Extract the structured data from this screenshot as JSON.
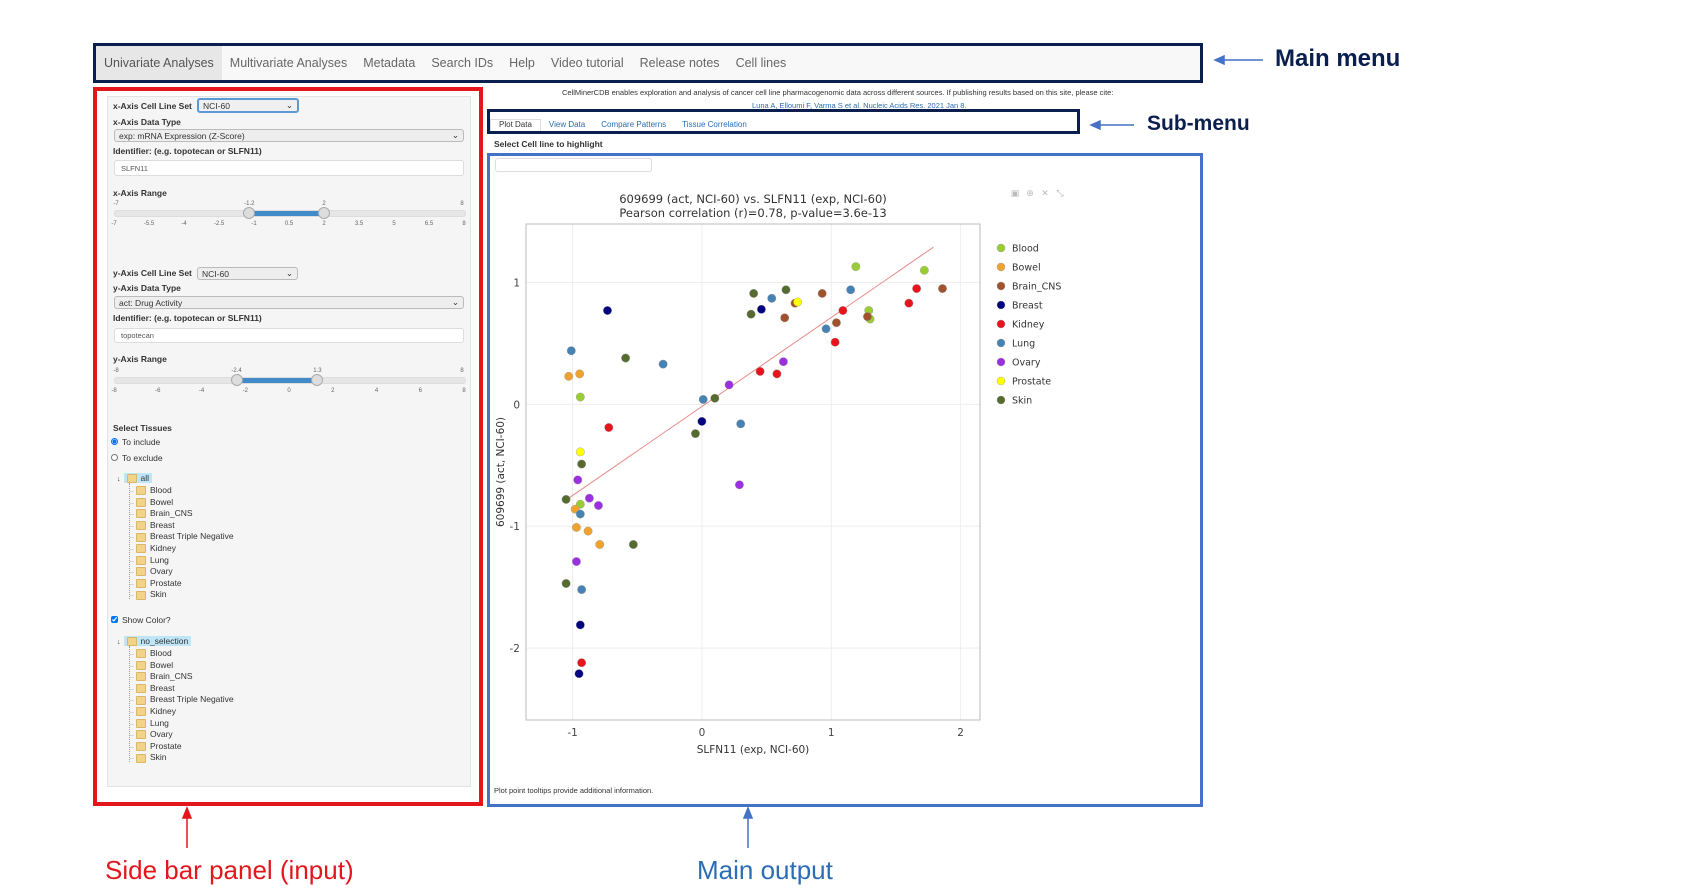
{
  "main_menu": {
    "items": [
      "Univariate Analyses",
      "Multivariate Analyses",
      "Metadata",
      "Search IDs",
      "Help",
      "Video tutorial",
      "Release notes",
      "Cell lines"
    ],
    "active": "Univariate Analyses"
  },
  "callouts": {
    "main_menu": "Main menu",
    "sub_menu": "Sub-menu",
    "sidebar": "Side bar panel (input)",
    "main_output": "Main output"
  },
  "header": {
    "citation_text": "CellMinerCDB enables exploration and analysis of cancer cell line pharmacogenomic data across different sources. If publishing results based on this site, please cite:",
    "citation_link": "Luna A, Elloumi F, Varma S et al. Nucleic Acids Res. 2021 Jan 8."
  },
  "sidebar": {
    "x_axis": {
      "cell_line_set_label": "x-Axis Cell Line Set",
      "cell_line_set": "NCI-60",
      "data_type_label": "x-Axis Data Type",
      "data_type": "exp: mRNA Expression (Z-Score)",
      "identifier_label": "Identifier: (e.g. topotecan or SLFN11)",
      "identifier": "SLFN11",
      "range_label": "x-Axis Range",
      "range_min": -7,
      "range_max": 8,
      "range_low": -1.2,
      "range_high": 2,
      "ticks": [
        "-7",
        "-5.5",
        "-4",
        "-2.5",
        "-1",
        "0.5",
        "2",
        "3.5",
        "5",
        "6.5",
        "8"
      ]
    },
    "y_axis": {
      "cell_line_set_label": "y-Axis Cell Line Set",
      "cell_line_set": "NCI-60",
      "data_type_label": "y-Axis Data Type",
      "data_type": "act: Drug Activity",
      "identifier_label": "Identifier: (e.g. topotecan or SLFN11)",
      "identifier": "topotecan",
      "range_label": "y-Axis Range",
      "range_min": -8,
      "range_max": 8,
      "range_low": -2.4,
      "range_high": 1.3,
      "ticks": [
        "-8",
        "-6",
        "-4",
        "-2",
        "0",
        "2",
        "4",
        "6",
        "8"
      ]
    },
    "select_tissues_label": "Select Tissues",
    "include_label": "To include",
    "exclude_label": "To exclude",
    "mode": "include",
    "tissue_tree_root": "all",
    "tissues": [
      "Blood",
      "Bowel",
      "Brain_CNS",
      "Breast",
      "Breast Triple Negative",
      "Kidney",
      "Lung",
      "Ovary",
      "Prostate",
      "Skin"
    ],
    "show_color_label": "Show Color?",
    "show_color": true,
    "color_tree_root": "no_selection"
  },
  "sub_menu": {
    "tabs": [
      "Plot Data",
      "View Data",
      "Compare Patterns",
      "Tissue Correlation"
    ],
    "active": "Plot Data"
  },
  "main": {
    "highlight_label": "Select Cell line to highlight",
    "highlight_value": "",
    "footnote": "Plot point tooltips provide additional information.",
    "modebar_icons": [
      "camera-icon",
      "zoom-icon",
      "reset-axes-icon",
      "autoscale-icon"
    ]
  },
  "chart_data": {
    "type": "scatter",
    "title": "609699 (act, NCI-60) vs. SLFN11 (exp, NCI-60)",
    "subtitle": "Pearson correlation (r)=0.78, p-value=3.6e-13",
    "xlabel": "SLFN11 (exp, NCI-60)",
    "ylabel": "609699 (act, NCI-60)",
    "xlim": [
      -1.36,
      2.15
    ],
    "ylim": [
      -2.59,
      1.48
    ],
    "xticks": [
      -1,
      0,
      1,
      2
    ],
    "yticks": [
      -2,
      -1,
      0,
      1
    ],
    "grid": true,
    "legend": "right",
    "fit_line": {
      "color": "#e88a8a",
      "from": [
        -1.03,
        -0.77
      ],
      "to": [
        1.79,
        1.29
      ]
    },
    "series": [
      {
        "name": "Blood",
        "color": "#9acd32",
        "points": [
          [
            1.19,
            1.13
          ],
          [
            1.72,
            1.1
          ],
          [
            1.29,
            0.77
          ],
          [
            1.3,
            0.7
          ],
          [
            -0.94,
            0.06
          ],
          [
            -0.94,
            -0.82
          ]
        ]
      },
      {
        "name": "Bowel",
        "color": "#f0a22e",
        "points": [
          [
            -1.03,
            0.23
          ],
          [
            -0.945,
            0.25
          ],
          [
            -0.98,
            -0.86
          ],
          [
            -0.97,
            -1.01
          ],
          [
            -0.88,
            -1.04
          ],
          [
            -0.79,
            -1.15
          ]
        ]
      },
      {
        "name": "Brain_CNS",
        "color": "#a0522d",
        "points": [
          [
            0.72,
            0.83
          ],
          [
            0.64,
            0.71
          ],
          [
            0.93,
            0.91
          ],
          [
            1.04,
            0.67
          ],
          [
            1.28,
            0.72
          ],
          [
            1.86,
            0.95
          ]
        ]
      },
      {
        "name": "Breast",
        "color": "#000080",
        "points": [
          [
            -0.73,
            0.77
          ],
          [
            0.46,
            0.78
          ],
          [
            0.0,
            -0.14
          ],
          [
            -0.94,
            -1.81
          ],
          [
            -0.95,
            -2.21
          ]
        ]
      },
      {
        "name": "Kidney",
        "color": "#e8141b",
        "points": [
          [
            -0.72,
            -0.19
          ],
          [
            0.45,
            0.27
          ],
          [
            0.58,
            0.25
          ],
          [
            1.03,
            0.51
          ],
          [
            1.09,
            0.77
          ],
          [
            1.6,
            0.83
          ],
          [
            1.66,
            0.95
          ],
          [
            -0.93,
            -2.12
          ]
        ]
      },
      {
        "name": "Lung",
        "color": "#4682b4",
        "points": [
          [
            -1.01,
            0.44
          ],
          [
            -0.3,
            0.33
          ],
          [
            0.01,
            0.04
          ],
          [
            0.3,
            -0.16
          ],
          [
            0.54,
            0.87
          ],
          [
            0.96,
            0.62
          ],
          [
            1.15,
            0.94
          ],
          [
            -0.94,
            -0.9
          ],
          [
            -0.93,
            -1.52
          ]
        ]
      },
      {
        "name": "Ovary",
        "color": "#9b30e0",
        "points": [
          [
            0.21,
            0.16
          ],
          [
            0.63,
            0.35
          ],
          [
            0.29,
            -0.66
          ],
          [
            -0.96,
            -0.62
          ],
          [
            -0.87,
            -0.77
          ],
          [
            -0.8,
            -0.83
          ],
          [
            -0.97,
            -1.29
          ]
        ]
      },
      {
        "name": "Prostate",
        "color": "#ffff00",
        "points": [
          [
            0.74,
            0.84
          ],
          [
            -0.94,
            -0.39
          ]
        ]
      },
      {
        "name": "Skin",
        "color": "#556b2f",
        "points": [
          [
            0.4,
            0.91
          ],
          [
            0.65,
            0.94
          ],
          [
            0.38,
            0.74
          ],
          [
            -0.59,
            0.38
          ],
          [
            0.1,
            0.05
          ],
          [
            -0.05,
            -0.24
          ],
          [
            -0.93,
            -0.49
          ],
          [
            -1.05,
            -0.78
          ],
          [
            -0.53,
            -1.15
          ],
          [
            -1.05,
            -1.47
          ]
        ]
      }
    ]
  }
}
